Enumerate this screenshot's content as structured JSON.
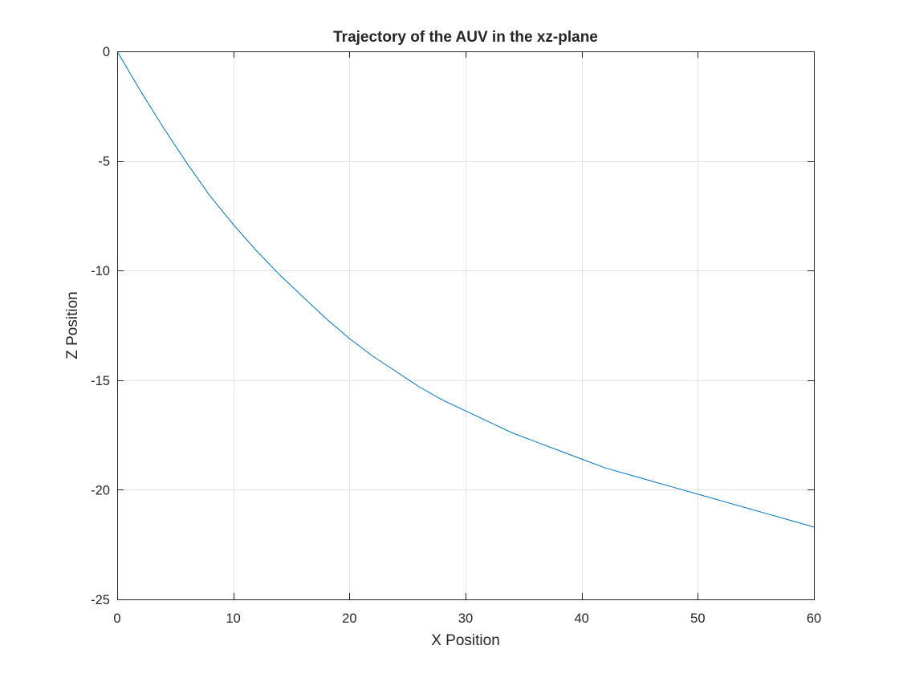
{
  "chart_data": {
    "type": "line",
    "title": "Trajectory of the AUV in the xz-plane",
    "xlabel": "X Position",
    "ylabel": "Z Position",
    "xlim": [
      0,
      60
    ],
    "ylim": [
      -25,
      0
    ],
    "xticks": [
      0,
      10,
      20,
      30,
      40,
      50,
      60
    ],
    "yticks": [
      0,
      -5,
      -10,
      -15,
      -20,
      -25
    ],
    "xtick_labels": [
      "0",
      "10",
      "20",
      "30",
      "40",
      "50",
      "60"
    ],
    "ytick_labels": [
      "0",
      "-5",
      "-10",
      "-15",
      "-20",
      "-25"
    ],
    "grid": true,
    "box": true,
    "series": [
      {
        "color": "#0072bd",
        "x": [
          0,
          2,
          4,
          6,
          8,
          10,
          12,
          14,
          16,
          18,
          20,
          22,
          24,
          26,
          28,
          30,
          32,
          34,
          36,
          38,
          40,
          42,
          44,
          46,
          48,
          50,
          52,
          54,
          56,
          58,
          60
        ],
        "y": [
          0,
          -1.8,
          -3.5,
          -5.1,
          -6.6,
          -7.9,
          -9.1,
          -10.2,
          -11.2,
          -12.2,
          -13.1,
          -13.9,
          -14.6,
          -15.3,
          -15.9,
          -16.4,
          -16.9,
          -17.4,
          -17.8,
          -18.2,
          -18.6,
          -19.0,
          -19.3,
          -19.6,
          -19.9,
          -20.2,
          -20.5,
          -20.8,
          -21.1,
          -21.4,
          -21.7
        ]
      }
    ]
  }
}
